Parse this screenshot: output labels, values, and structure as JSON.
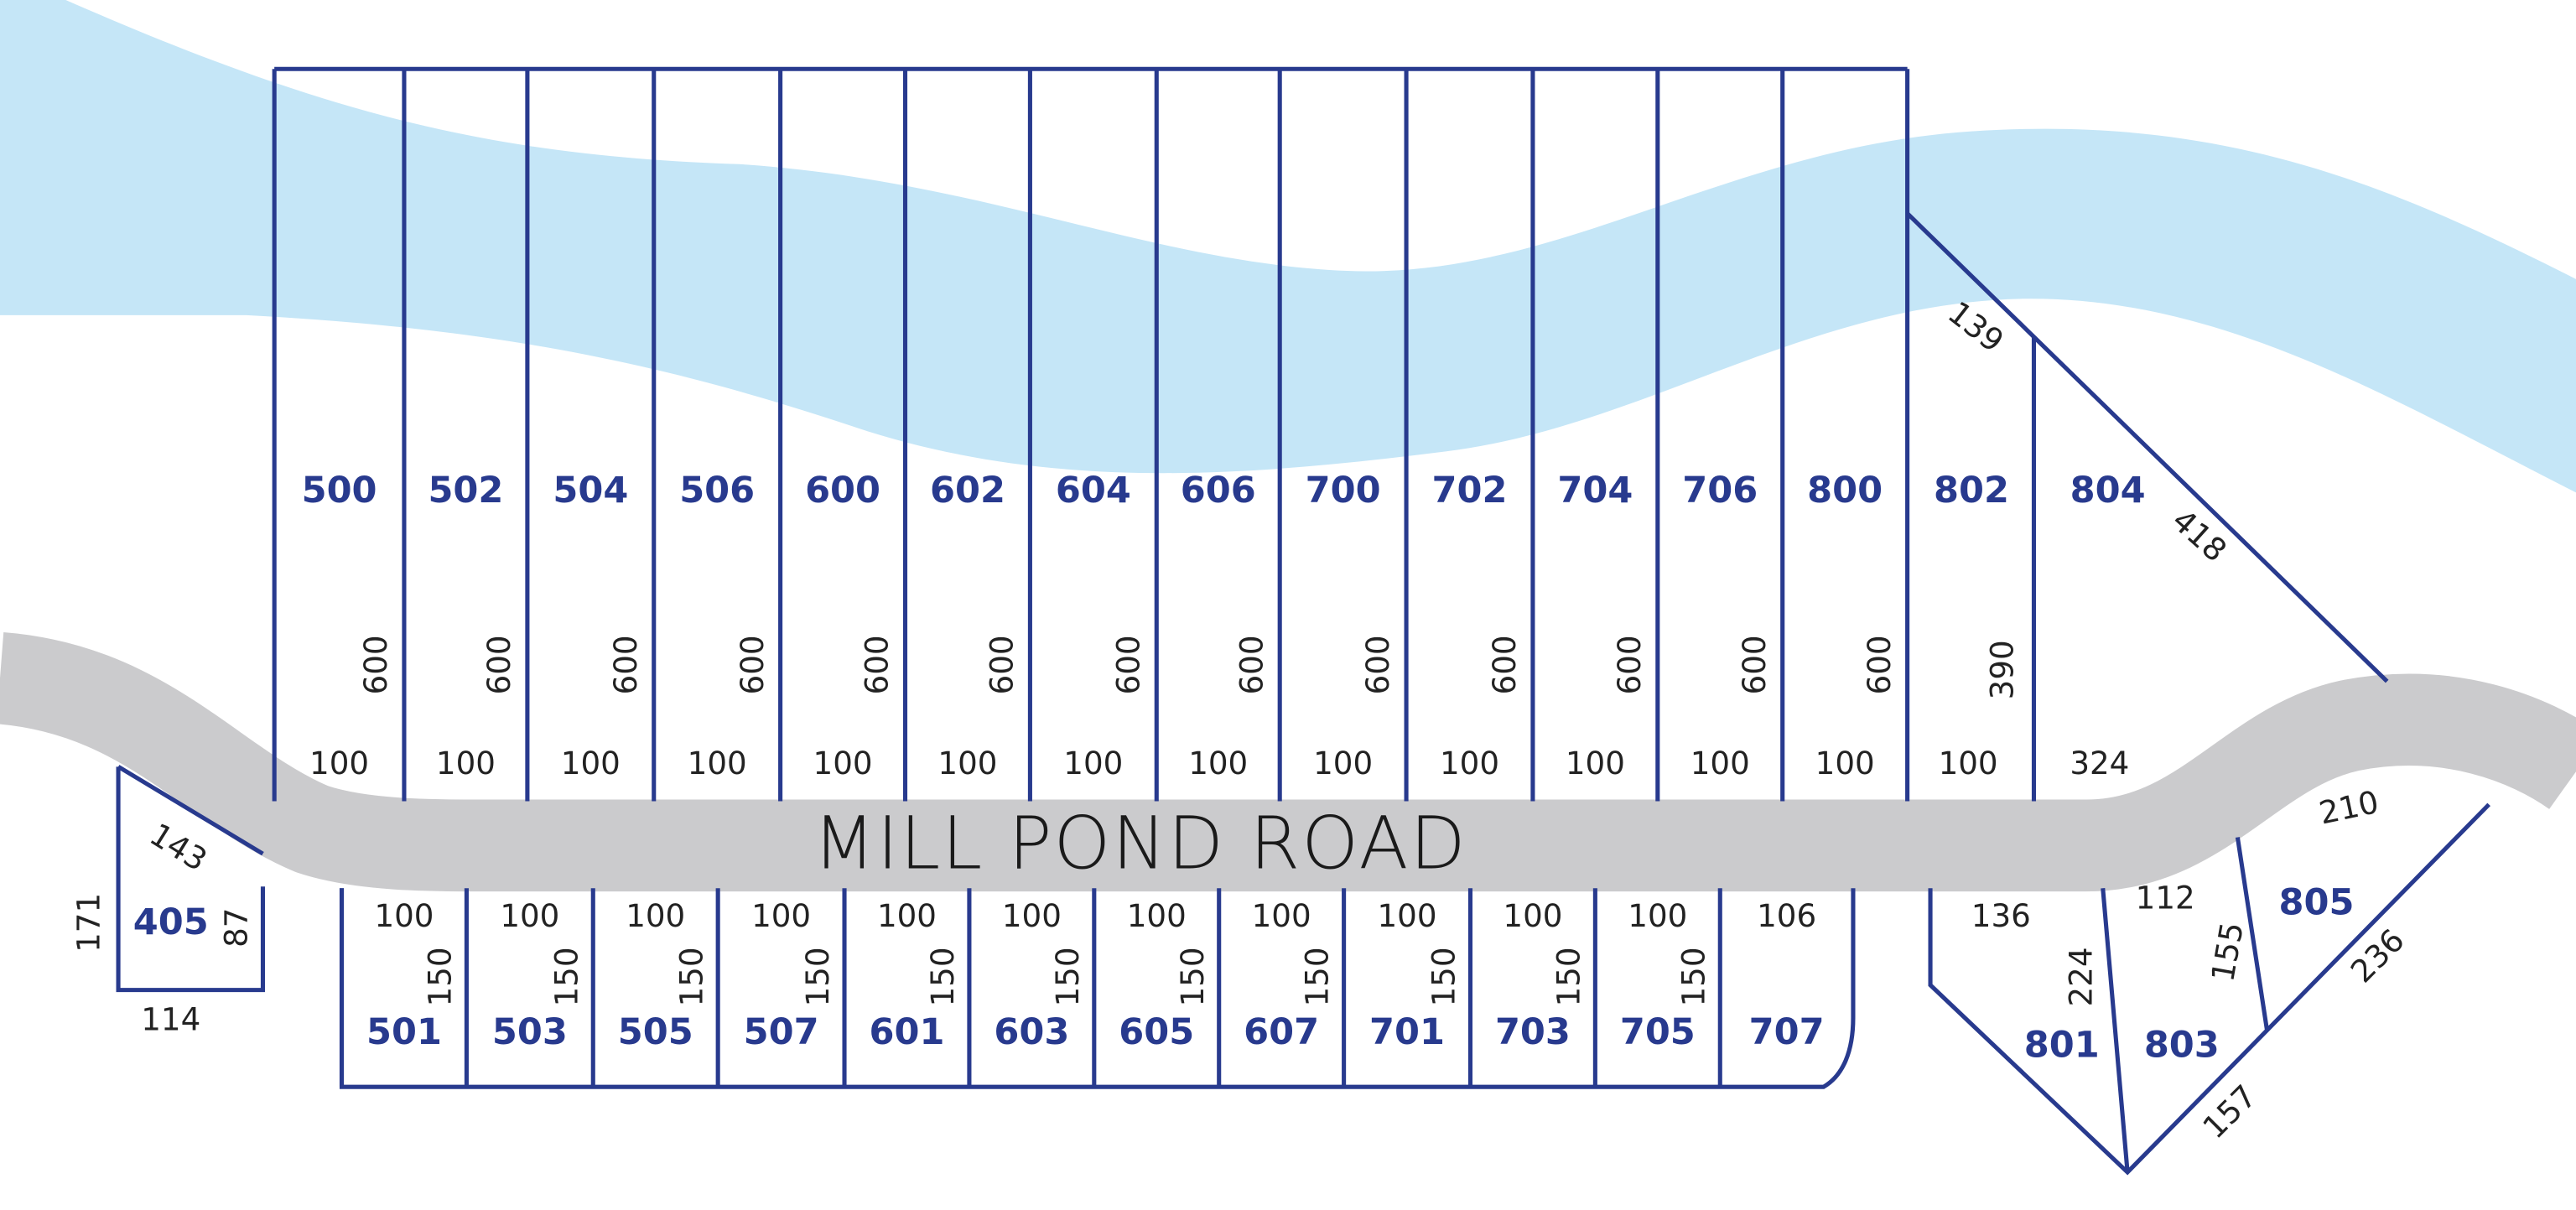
{
  "road": "MILL POND ROAD",
  "top_lots": [
    {
      "lot": "500",
      "depth": "600",
      "frontage": "100"
    },
    {
      "lot": "502",
      "depth": "600",
      "frontage": "100"
    },
    {
      "lot": "504",
      "depth": "600",
      "frontage": "100"
    },
    {
      "lot": "506",
      "depth": "600",
      "frontage": "100"
    },
    {
      "lot": "600",
      "depth": "600",
      "frontage": "100"
    },
    {
      "lot": "602",
      "depth": "600",
      "frontage": "100"
    },
    {
      "lot": "604",
      "depth": "600",
      "frontage": "100"
    },
    {
      "lot": "606",
      "depth": "600",
      "frontage": "100"
    },
    {
      "lot": "700",
      "depth": "600",
      "frontage": "100"
    },
    {
      "lot": "702",
      "depth": "600",
      "frontage": "100"
    },
    {
      "lot": "704",
      "depth": "600",
      "frontage": "100"
    },
    {
      "lot": "706",
      "depth": "600",
      "frontage": "100"
    },
    {
      "lot": "800",
      "depth": "600",
      "frontage": "100"
    }
  ],
  "lot_802": {
    "lot": "802",
    "depth": "390",
    "frontage": "100",
    "rear": "139"
  },
  "lot_804": {
    "lot": "804",
    "frontage": "324",
    "side": "418"
  },
  "bottom_lots": [
    {
      "lot": "501",
      "frontage": "100",
      "depth": "150"
    },
    {
      "lot": "503",
      "frontage": "100",
      "depth": "150"
    },
    {
      "lot": "505",
      "frontage": "100",
      "depth": "150"
    },
    {
      "lot": "507",
      "frontage": "100",
      "depth": "150"
    },
    {
      "lot": "601",
      "frontage": "100",
      "depth": "150"
    },
    {
      "lot": "603",
      "frontage": "100",
      "depth": "150"
    },
    {
      "lot": "605",
      "frontage": "100",
      "depth": "150"
    },
    {
      "lot": "607",
      "frontage": "100",
      "depth": "150"
    },
    {
      "lot": "701",
      "frontage": "100",
      "depth": "150"
    },
    {
      "lot": "703",
      "frontage": "100",
      "depth": "150"
    },
    {
      "lot": "705",
      "frontage": "100",
      "depth": "150"
    },
    {
      "lot": "707",
      "frontage": "106"
    }
  ],
  "lot_405": {
    "lot": "405",
    "front": "143",
    "left": "171",
    "right": "87",
    "rear": "114"
  },
  "lot_801": {
    "lot": "801",
    "front": "136",
    "side": "224"
  },
  "lot_803": {
    "lot": "803",
    "front": "112",
    "side": "155",
    "rear": "157"
  },
  "lot_805": {
    "lot": "805",
    "front": "210",
    "rear": "236"
  }
}
